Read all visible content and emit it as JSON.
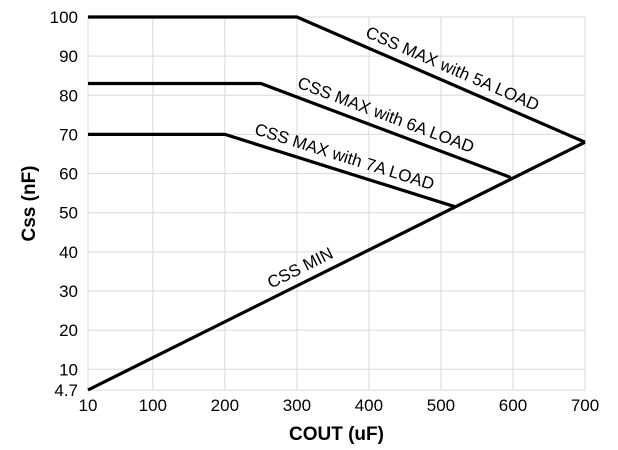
{
  "chart_data": {
    "type": "line",
    "title": "",
    "xlabel": "COUT (uF)",
    "ylabel": "Css (nF)",
    "xlim": [
      10,
      700
    ],
    "ylim": [
      4.7,
      100
    ],
    "x_ticks": [
      "10",
      "100",
      "200",
      "300",
      "400",
      "500",
      "600",
      "700"
    ],
    "y_ticks": [
      "4.7",
      "10",
      "20",
      "30",
      "40",
      "50",
      "60",
      "70",
      "80",
      "90",
      "100"
    ],
    "grid": true,
    "legend": "none",
    "colors": {
      "line": "#000000",
      "grid": "#d9d9d9"
    },
    "series": [
      {
        "name": "CSS MAX with 5A LOAD",
        "x": [
          10,
          300,
          700
        ],
        "y": [
          100,
          100,
          68
        ]
      },
      {
        "name": "CSS MAX with 6A LOAD",
        "x": [
          10,
          250,
          597
        ],
        "y": [
          83,
          83,
          59
        ]
      },
      {
        "name": "CSS MAX with 7A LOAD",
        "x": [
          10,
          200,
          520
        ],
        "y": [
          70,
          70,
          51.5
        ]
      },
      {
        "name": "CSS MIN",
        "x": [
          10,
          700
        ],
        "y": [
          4.7,
          68
        ]
      }
    ]
  }
}
